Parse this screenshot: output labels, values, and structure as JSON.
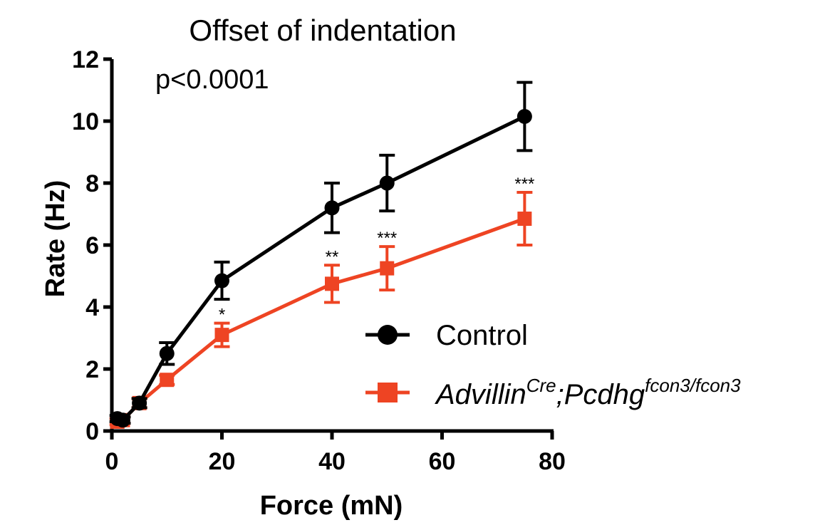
{
  "chart_data": {
    "type": "line",
    "title": "Offset of indentation",
    "annotation": "p<0.0001",
    "xlabel": "Force (mN)",
    "ylabel": "Rate (Hz)",
    "xlim": [
      0,
      80
    ],
    "ylim": [
      0,
      12
    ],
    "xticks": [
      "0",
      "20",
      "40",
      "60",
      "80"
    ],
    "yticks": [
      "0",
      "2",
      "4",
      "6",
      "8",
      "10",
      "12"
    ],
    "grid": false,
    "legend_position": "lower-right",
    "series": [
      {
        "name": "Control",
        "marker": "circle",
        "color": "#000000",
        "points": [
          {
            "x": 1,
            "y": 0.4,
            "err": 0.1
          },
          {
            "x": 2,
            "y": 0.35,
            "err": 0.1
          },
          {
            "x": 5,
            "y": 0.9,
            "err": 0.15
          },
          {
            "x": 10,
            "y": 2.5,
            "err": 0.35
          },
          {
            "x": 20,
            "y": 4.85,
            "err": 0.6
          },
          {
            "x": 40,
            "y": 7.2,
            "err": 0.8
          },
          {
            "x": 50,
            "y": 8.0,
            "err": 0.9
          },
          {
            "x": 75,
            "y": 10.15,
            "err": 1.1
          }
        ]
      },
      {
        "name_main": "Advillin",
        "name_sup1": "Cre",
        "name_mid": ";Pcdhg",
        "name_sup2": "fcon3/fcon3",
        "marker": "square",
        "color": "#ee4423",
        "points": [
          {
            "x": 1,
            "y": 0.3,
            "err": 0.1
          },
          {
            "x": 2,
            "y": 0.35,
            "err": 0.1
          },
          {
            "x": 5,
            "y": 0.9,
            "err": 0.15
          },
          {
            "x": 10,
            "y": 1.65,
            "err": 0.15
          },
          {
            "x": 20,
            "y": 3.1,
            "err": 0.38
          },
          {
            "x": 40,
            "y": 4.75,
            "err": 0.6
          },
          {
            "x": 50,
            "y": 5.25,
            "err": 0.7
          },
          {
            "x": 75,
            "y": 6.85,
            "err": 0.85
          }
        ]
      }
    ],
    "significance": [
      {
        "x": 20,
        "label": "*"
      },
      {
        "x": 40,
        "label": "**"
      },
      {
        "x": 50,
        "label": "***"
      },
      {
        "x": 75,
        "label": "***"
      }
    ]
  }
}
